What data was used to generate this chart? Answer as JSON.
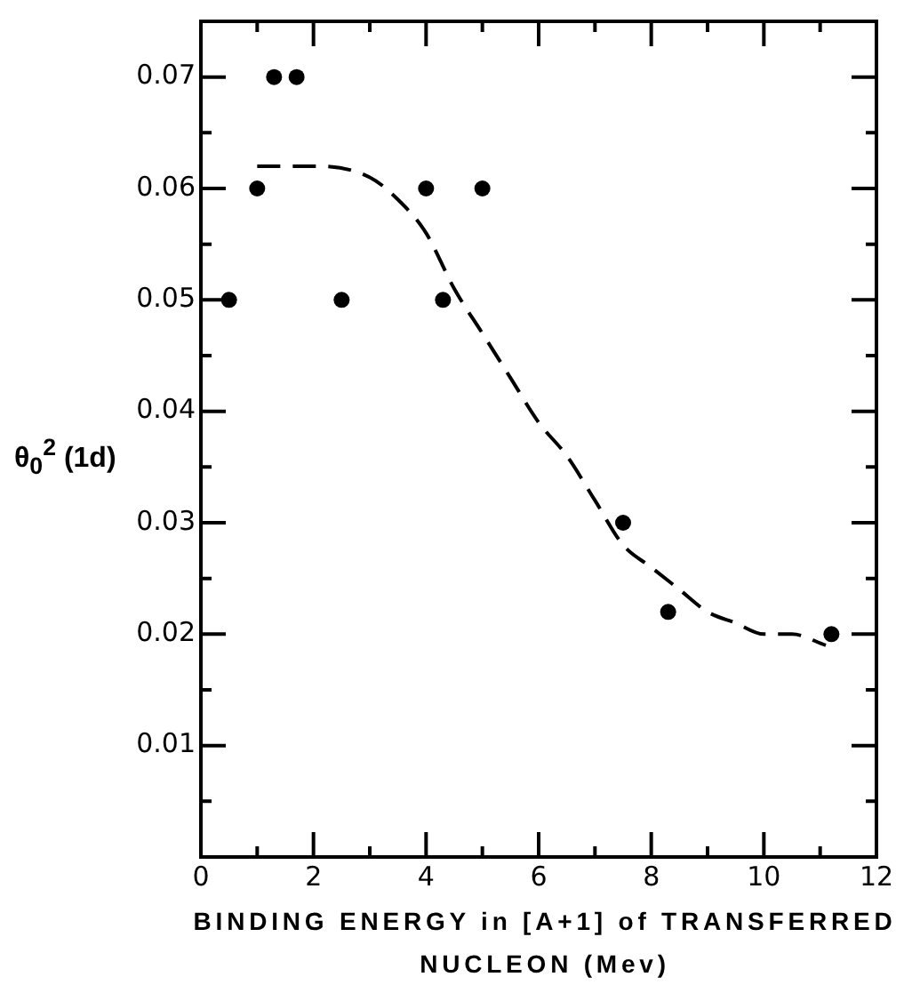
{
  "chart_data": {
    "type": "scatter",
    "xlabel": "BINDING ENERGY in [A+1] of TRANSFERRED NUCLEON (Mev)",
    "ylabel": "θ$_{0}$$^{2}$ (1d)",
    "marker": "circle",
    "xlim": [
      0,
      12
    ],
    "xticks": [
      0,
      {
        "value": 1,
        "label": null
      },
      2,
      {
        "value": 3,
        "label": null
      },
      4,
      {
        "value": 5,
        "label": null
      },
      6,
      {
        "value": 7,
        "label": null
      },
      8,
      {
        "value": 9,
        "label": null
      },
      10,
      {
        "value": 11,
        "label": null
      },
      12
    ],
    "ylim": [
      0,
      0.075
    ],
    "yticks": [
      {
        "value": 0.005,
        "label": null
      },
      0.01,
      {
        "value": 0.015,
        "label": null
      },
      0.02,
      {
        "value": 0.025,
        "label": null
      },
      0.03,
      {
        "value": 0.035,
        "label": null
      },
      0.04,
      {
        "value": 0.045,
        "label": null
      },
      0.05,
      {
        "value": 0.055,
        "label": null
      },
      0.06,
      {
        "value": 0.065,
        "label": null
      },
      0.07
    ],
    "series": [
      {
        "color": "#000000",
        "x": [
          0.5,
          1.0,
          1.3,
          1.7,
          2.5,
          4.0,
          4.3,
          5.0,
          7.5,
          8.3,
          11.2
        ],
        "values": [
          0.05,
          0.06,
          0.07,
          0.07,
          0.05,
          0.06,
          0.05,
          0.06,
          0.03,
          0.022,
          0.02
        ]
      },
      {
        "type": "line",
        "color": "#000000",
        "marker": "none",
        "line_style": "dashed",
        "x": [
          1.0,
          2.1,
          3.0,
          3.5,
          4.0,
          4.5,
          5.0,
          5.5,
          6.0,
          6.5,
          7.0,
          7.5,
          8.0,
          8.5,
          9.0,
          9.5,
          10.0,
          10.5,
          11.1
        ],
        "values": [
          0.062,
          0.062,
          0.061,
          0.059,
          0.056,
          0.051,
          0.047,
          0.043,
          0.039,
          0.036,
          0.032,
          0.028,
          0.026,
          0.024,
          0.022,
          0.021,
          0.02,
          0.02,
          0.019
        ]
      }
    ]
  }
}
